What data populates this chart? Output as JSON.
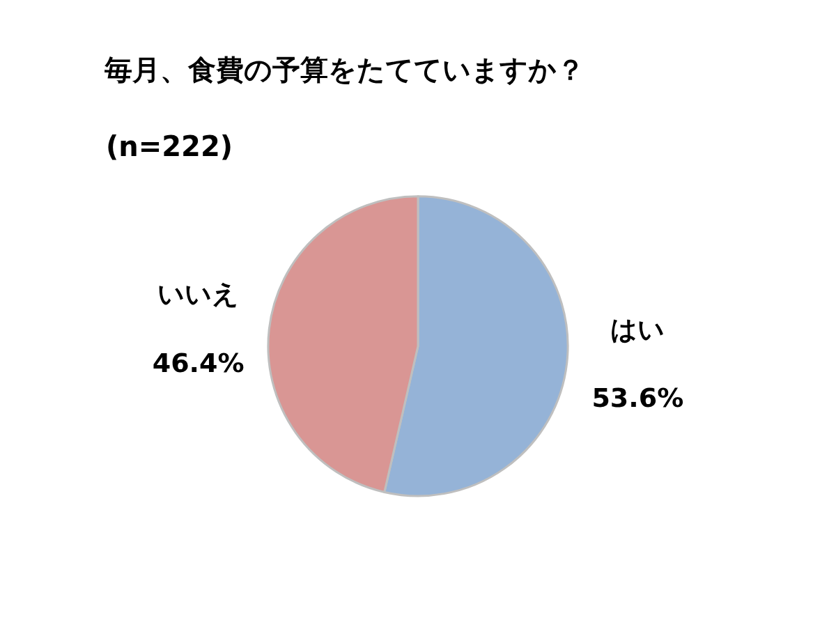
{
  "chart_data": {
    "type": "pie",
    "title": "毎月、食費の予算をたてていますか？",
    "subtitle": "(n=222)",
    "categories": [
      "はい",
      "いいえ"
    ],
    "values": [
      53.6,
      46.4
    ],
    "value_labels": [
      "53.6%",
      "46.4%"
    ],
    "colors": [
      "#95b3d7",
      "#d99694"
    ],
    "legend": false
  }
}
